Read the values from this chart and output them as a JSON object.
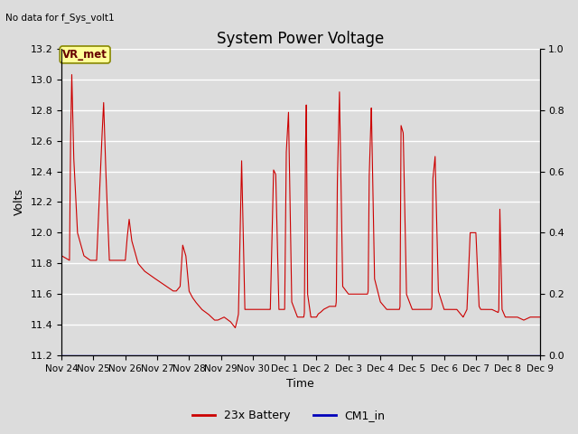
{
  "title": "System Power Voltage",
  "top_left_text": "No data for f_Sys_volt1",
  "ylabel_left": "Volts",
  "xlabel": "Time",
  "ylim_left": [
    11.2,
    13.2
  ],
  "ylim_right": [
    0.0,
    1.0
  ],
  "background_color": "#dcdcdc",
  "line_color_battery": "#cc0000",
  "line_color_cm1": "#0000bb",
  "legend_labels": [
    "23x Battery",
    "CM1_in"
  ],
  "vr_met_label": "VR_met",
  "vr_met_box_color": "#ffff99",
  "vr_met_border_color": "#888800",
  "title_fontsize": 12,
  "tick_dates": [
    "Nov 24",
    "Nov 25",
    "Nov 26",
    "Nov 27",
    "Nov 28",
    "Nov 29",
    "Nov 30",
    "Dec 1",
    "Dec 2",
    "Dec 3",
    "Dec 4",
    "Dec 5",
    "Dec 6",
    "Dec 7",
    "Dec 8",
    "Dec 9"
  ],
  "yticks_left": [
    11.2,
    11.4,
    11.6,
    11.8,
    12.0,
    12.2,
    12.4,
    12.6,
    12.8,
    13.0,
    13.2
  ],
  "yticks_right": [
    0.0,
    0.2,
    0.4,
    0.6,
    0.8,
    1.0
  ],
  "xmin": 0,
  "xmax": 15
}
